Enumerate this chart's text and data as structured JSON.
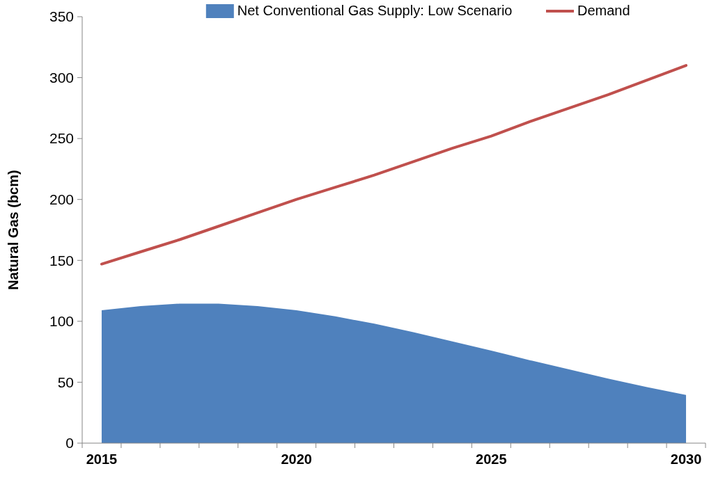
{
  "chart_data": {
    "type": "area",
    "ylabel": "Natural Gas (bcm)",
    "categories": [
      "2015",
      null,
      null,
      null,
      null,
      "2020",
      null,
      null,
      null,
      null,
      "2025",
      null,
      null,
      null,
      null,
      "2030"
    ],
    "series": [
      {
        "name": "Net Conventional Gas Supply: Low Scenario",
        "color": "#4f81bd",
        "values": [
          109,
          112.5,
          114.5,
          114.5,
          112.5,
          109,
          104,
          98,
          91,
          83.5,
          76,
          68,
          60.5,
          53,
          46,
          39.5
        ]
      },
      {
        "name": "Demand",
        "type": "line",
        "color": "#c0504d",
        "values": [
          147,
          157,
          167,
          178,
          189,
          200,
          210,
          220,
          231,
          242,
          252,
          264,
          275,
          286,
          298,
          310
        ]
      }
    ],
    "ylim": [
      0,
      350
    ],
    "yticks": [
      0,
      50,
      100,
      150,
      200,
      250,
      300,
      350
    ],
    "grid": false,
    "legend": "top"
  }
}
